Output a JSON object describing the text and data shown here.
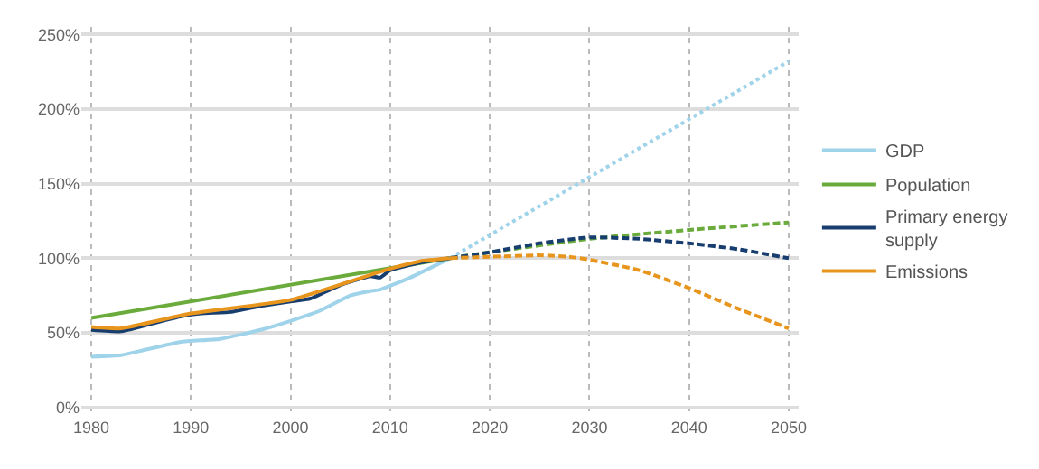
{
  "chart_data": {
    "type": "line",
    "xlim": [
      1979,
      2051
    ],
    "xticks": [
      1980,
      1990,
      2000,
      2010,
      2020,
      2030,
      2040,
      2050
    ],
    "ylim": [
      -5,
      255
    ],
    "yticks": [
      {
        "value": 0,
        "label": "0%"
      },
      {
        "value": 50,
        "label": "50%"
      },
      {
        "value": 100,
        "label": "100%"
      },
      {
        "value": 150,
        "label": "150%"
      },
      {
        "value": 200,
        "label": "200%"
      },
      {
        "value": 250,
        "label": "250%"
      }
    ],
    "grid": true,
    "legend": "right",
    "marker": "none",
    "series": [
      {
        "name": "GDP",
        "color": "#9fd3ea",
        "line_style": "solid",
        "x": [
          1980,
          1983,
          1985,
          1989,
          1993,
          1997,
          2000,
          2003,
          2006,
          2008,
          2009,
          2012,
          2016
        ],
        "values": [
          34,
          35,
          38,
          44,
          46,
          52,
          58,
          65,
          75,
          78,
          79,
          87,
          100
        ]
      },
      {
        "name": "Population",
        "color": "#6aab3c",
        "line_style": "solid",
        "x": [
          1980,
          2016
        ],
        "values": [
          60,
          100
        ]
      },
      {
        "name": "Primary energy supply",
        "color": "#173e6e",
        "line_style": "solid",
        "x": [
          1980,
          1983,
          1986,
          1989,
          1991,
          1994,
          1997,
          2000,
          2002,
          2005,
          2008,
          2009,
          2010,
          2013,
          2016
        ],
        "values": [
          52,
          51,
          56,
          61,
          63,
          64,
          68,
          71,
          73,
          82,
          88,
          87,
          92,
          97,
          100
        ]
      },
      {
        "name": "Emissions",
        "color": "#e8951e",
        "line_style": "solid",
        "x": [
          1980,
          1983,
          1990,
          2000,
          2010,
          2013,
          2016
        ],
        "values": [
          54,
          53,
          63,
          72,
          93,
          98,
          100
        ]
      },
      {
        "color": "#9fd3ea",
        "line_style": "dotted",
        "x": [
          2016,
          2050
        ],
        "values": [
          100,
          232
        ]
      },
      {
        "color": "#6aab3c",
        "line_style": "dashed",
        "x": [
          2016,
          2020,
          2030,
          2040,
          2050
        ],
        "values": [
          100,
          104,
          113,
          119,
          124
        ]
      },
      {
        "color": "#173e6e",
        "line_style": "dashed",
        "x": [
          2016,
          2020,
          2025,
          2030,
          2035,
          2040,
          2045,
          2050
        ],
        "values": [
          100,
          104,
          110,
          114,
          113,
          110,
          106,
          100
        ]
      },
      {
        "color": "#e8951e",
        "line_style": "dashed",
        "x": [
          2016,
          2020,
          2025,
          2028,
          2030,
          2035,
          2040,
          2045,
          2050
        ],
        "values": [
          100,
          101,
          102,
          101,
          99,
          92,
          80,
          66,
          53
        ]
      }
    ]
  }
}
